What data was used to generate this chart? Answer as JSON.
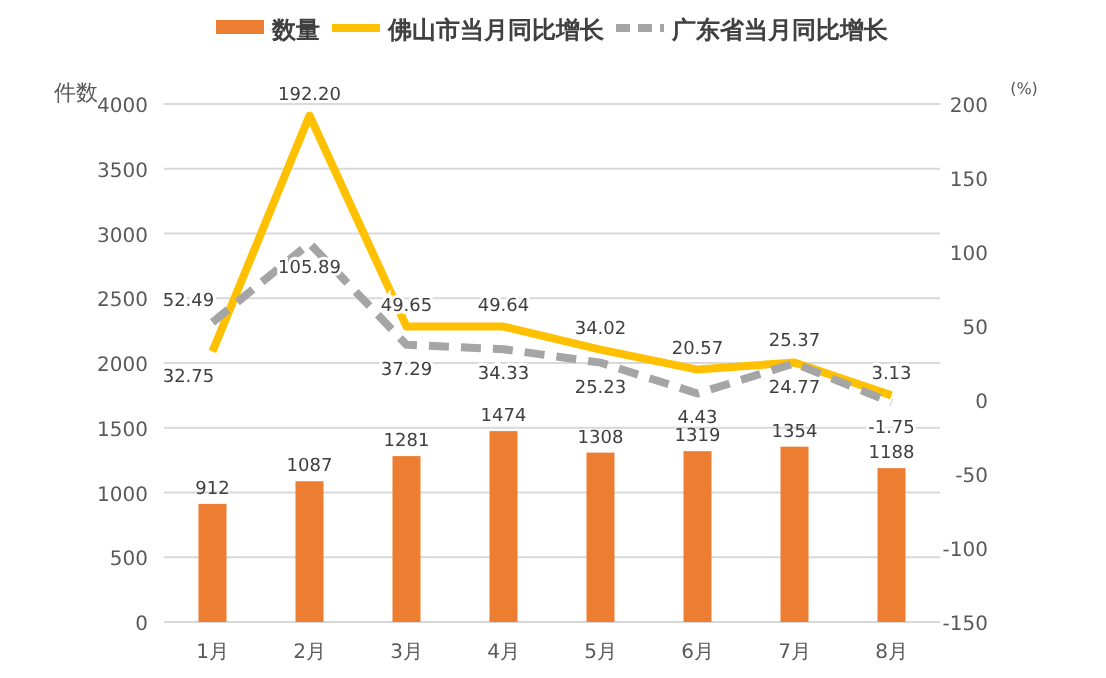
{
  "chart_data": {
    "type": "bar",
    "categories": [
      "1月",
      "2月",
      "3月",
      "4月",
      "5月",
      "6月",
      "7月",
      "8月"
    ],
    "series": [
      {
        "name": "数量",
        "color": "#ed7d31",
        "values": [
          912,
          1087,
          1281,
          1474,
          1308,
          1319,
          1354,
          1188
        ]
      },
      {
        "name": "佛山市当月同比增长",
        "type": "line",
        "axis": "y2",
        "color": "#ffc000",
        "line_style": "solid",
        "values": [
          32.75,
          192.2,
          49.65,
          49.64,
          34.02,
          20.57,
          25.37,
          3.13
        ],
        "value_labels": [
          "32.75",
          "192.20",
          "49.65",
          "49.64",
          "34.02",
          "20.57",
          "25.37",
          "3.13"
        ]
      },
      {
        "name": "广东省当月同比增长",
        "type": "line",
        "axis": "y2",
        "color": "#a5a5a5",
        "line_style": "dashed",
        "values": [
          52.49,
          105.89,
          37.29,
          34.33,
          25.23,
          4.43,
          24.77,
          -1.75
        ],
        "value_labels": [
          "52.49",
          "105.89",
          "37.29",
          "34.33",
          "25.23",
          "4.43",
          "24.77",
          "-1.75"
        ]
      }
    ],
    "ylabel": "件数",
    "y2label": "(%)",
    "ylim": [
      0,
      4000
    ],
    "yticks": [
      0,
      500,
      1000,
      1500,
      2000,
      2500,
      3000,
      3500,
      4000
    ],
    "y2lim": [
      -150,
      200
    ],
    "y2ticks": [
      -150,
      -100,
      -50,
      0,
      50,
      100,
      150,
      200
    ],
    "data_labels": true,
    "legend": "top",
    "grid": "y"
  }
}
